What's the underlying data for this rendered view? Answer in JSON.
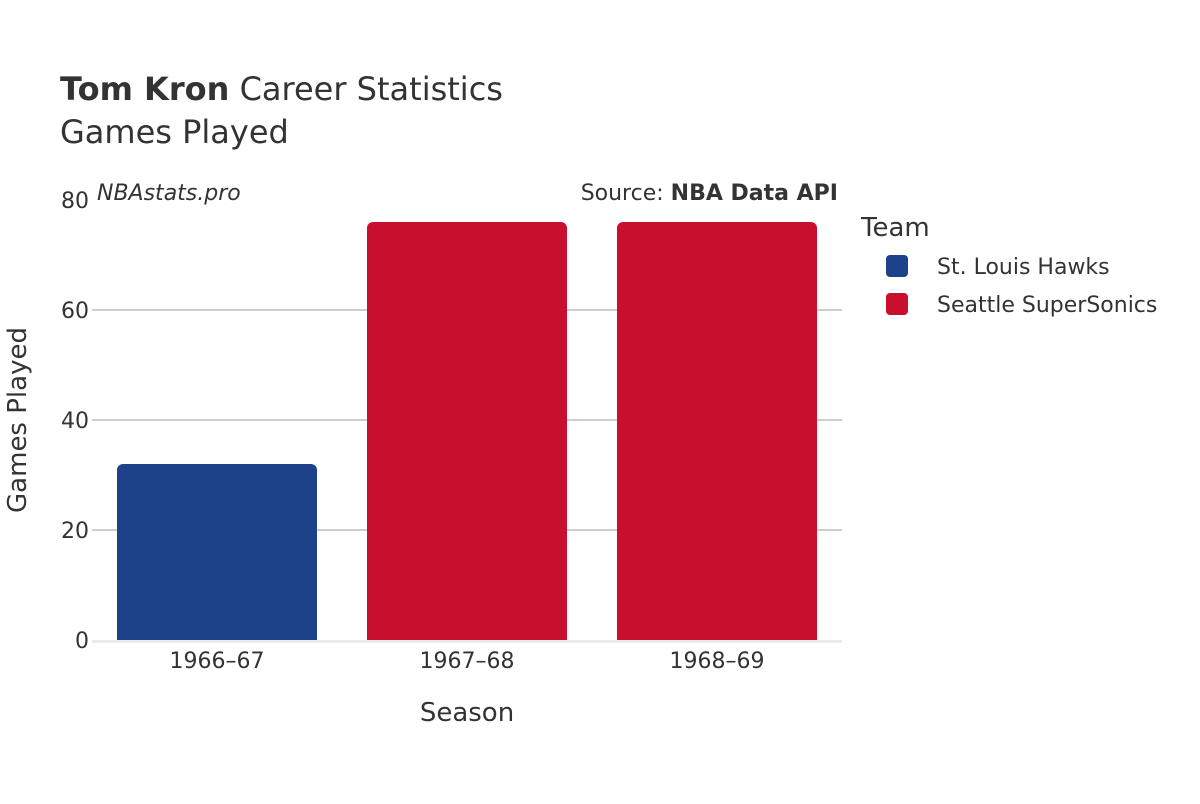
{
  "chart_data": {
    "type": "bar",
    "title_bold": "Tom Kron",
    "title_rest": " Career Statistics",
    "subtitle": "Games Played",
    "watermark": "NBAstats.pro",
    "source_prefix": "Source: ",
    "source_name": "NBA Data API",
    "xlabel": "Season",
    "ylabel": "Games Played",
    "ylim": [
      0,
      80
    ],
    "yticks": [
      0,
      20,
      40,
      60,
      80
    ],
    "grid": true,
    "legend_title": "Team",
    "legend_position": "right",
    "categories": [
      "1966–67",
      "1967–68",
      "1968–69"
    ],
    "values": [
      32,
      76,
      76
    ],
    "teams": [
      "St. Louis Hawks",
      "Seattle SuperSonics",
      "Seattle SuperSonics"
    ],
    "series": [
      {
        "name": "St. Louis Hawks",
        "color": "#1d428a"
      },
      {
        "name": "Seattle SuperSonics",
        "color": "#c8102e"
      }
    ]
  }
}
